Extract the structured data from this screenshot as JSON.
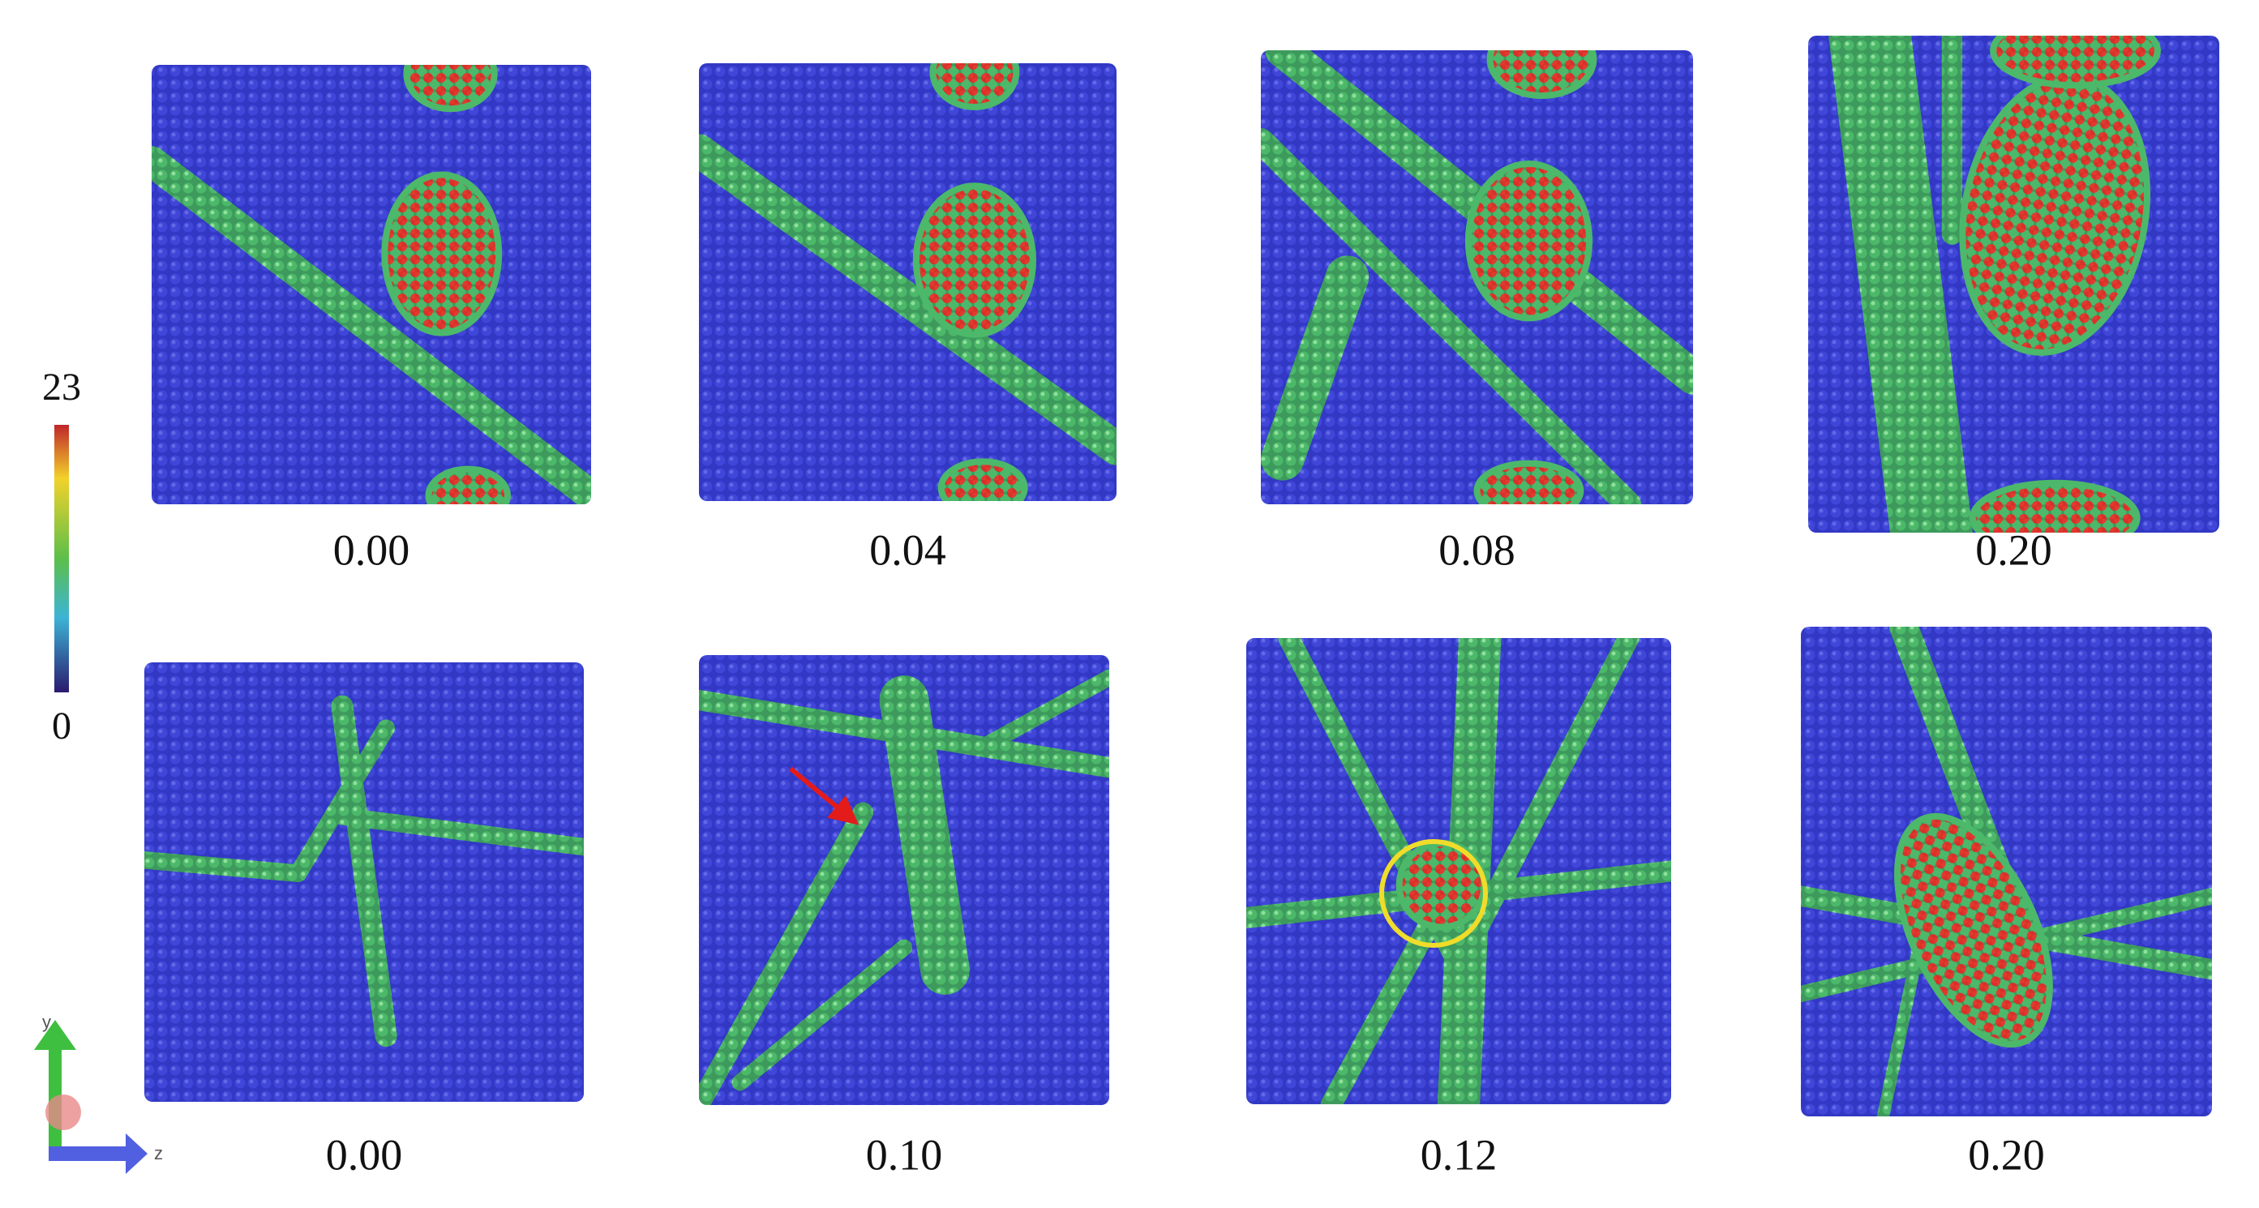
{
  "colorbar": {
    "max": "23",
    "min": "0"
  },
  "panels": [
    {
      "label": "0.00"
    },
    {
      "label": "0.04"
    },
    {
      "label": "0.08"
    },
    {
      "label": "0.20"
    },
    {
      "label": "0.00"
    },
    {
      "label": "0.10"
    },
    {
      "label": "0.12"
    },
    {
      "label": "0.20"
    }
  ],
  "axes": {
    "y": "y",
    "z": "z"
  }
}
